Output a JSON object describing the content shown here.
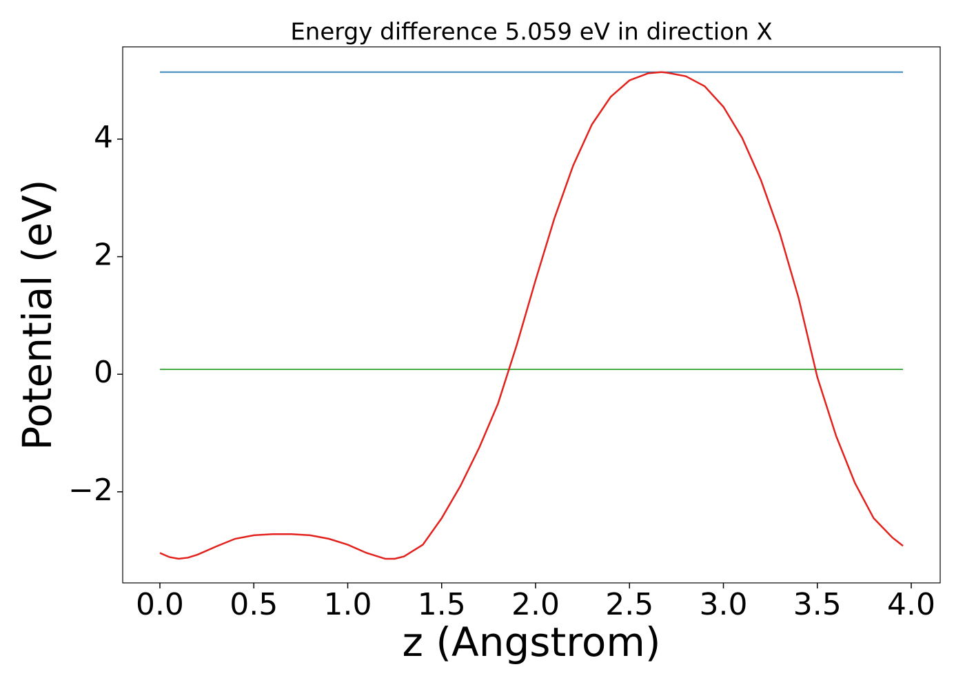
{
  "chart_data": {
    "type": "line",
    "title": "Energy difference 5.059 eV in direction X",
    "x_label": "z (Angstrom)",
    "y_label": "Potential (eV)",
    "xlim": [
      -0.198,
      4.154
    ],
    "ylim": [
      -3.55,
      5.57
    ],
    "xticks": [
      {
        "value": 0,
        "label": "0.0"
      },
      0.5,
      {
        "value": 1,
        "label": "1.0"
      },
      1.5,
      {
        "value": 2,
        "label": "2.0"
      },
      2.5,
      {
        "value": 3,
        "label": "3.0"
      },
      3.5,
      {
        "value": 4,
        "label": "4.0"
      }
    ],
    "yticks": [
      {
        "value": -2,
        "label": "−2"
      },
      0,
      2,
      4
    ],
    "grid": false,
    "series": [
      {
        "color": "#1f77b4",
        "x": [
          0,
          3.956
        ],
        "values": [
          5.141,
          5.141
        ]
      },
      {
        "color": "#2ca02c",
        "x": [
          0,
          3.956
        ],
        "values": [
          0.082,
          0.082
        ]
      },
      {
        "color": "#e3211c",
        "x": [
          0,
          0.05,
          0.1,
          0.15,
          0.2,
          0.3,
          0.4,
          0.5,
          0.6,
          0.7,
          0.8,
          0.9,
          1.0,
          1.1,
          1.2,
          1.25,
          1.3,
          1.4,
          1.5,
          1.6,
          1.7,
          1.8,
          1.9,
          2.0,
          2.1,
          2.2,
          2.3,
          2.4,
          2.5,
          2.6,
          2.67,
          2.7,
          2.8,
          2.9,
          3.0,
          3.1,
          3.2,
          3.3,
          3.4,
          3.5,
          3.6,
          3.7,
          3.8,
          3.9,
          3.956
        ],
        "values": [
          -3.04,
          -3.11,
          -3.14,
          -3.12,
          -3.07,
          -2.93,
          -2.8,
          -2.74,
          -2.72,
          -2.72,
          -2.74,
          -2.8,
          -2.9,
          -3.04,
          -3.14,
          -3.14,
          -3.1,
          -2.9,
          -2.45,
          -1.9,
          -1.25,
          -0.5,
          0.5,
          1.6,
          2.65,
          3.55,
          4.25,
          4.72,
          5.0,
          5.12,
          5.14,
          5.13,
          5.07,
          4.9,
          4.55,
          4.02,
          3.3,
          2.4,
          1.3,
          -0.05,
          -1.05,
          -1.85,
          -2.45,
          -2.78,
          -2.92
        ]
      }
    ]
  }
}
